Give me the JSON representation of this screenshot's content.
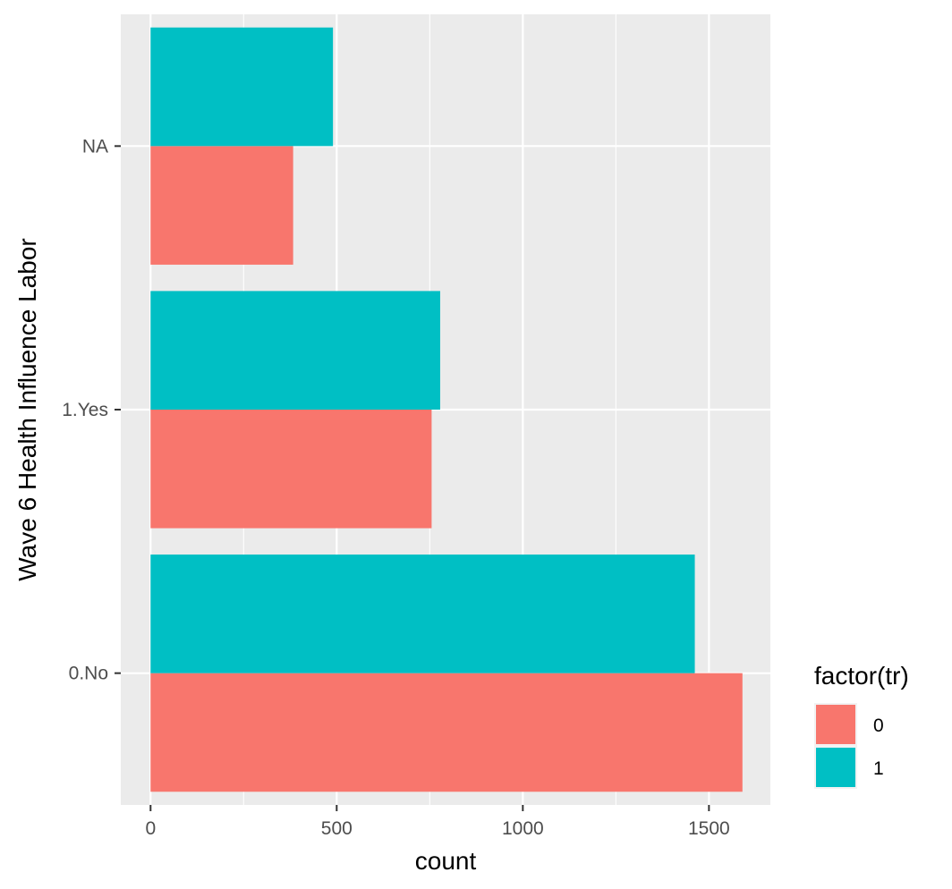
{
  "chart_data": {
    "type": "bar",
    "orientation": "horizontal",
    "position": "dodge",
    "categories": [
      "0.No",
      "1.Yes",
      "NA"
    ],
    "series": [
      {
        "name": "0",
        "values": [
          1590,
          755,
          383
        ]
      },
      {
        "name": "1",
        "values": [
          1462,
          778,
          490
        ]
      }
    ],
    "xlabel": "count",
    "ylabel": "Wave 6 Health Influence Labor",
    "xlim": [
      -80,
      1665
    ],
    "x_ticks": [
      0,
      500,
      1000,
      1500
    ],
    "x_tick_labels": [
      "0",
      "500",
      "1000",
      "1500"
    ],
    "x_minor_ticks": [
      250,
      750,
      1250
    ],
    "grid": true,
    "legend": {
      "title": "factor(tr)",
      "position": "right",
      "entries": [
        {
          "label": "0",
          "color": "#F8766D"
        },
        {
          "label": "1",
          "color": "#00BFC4"
        }
      ]
    },
    "colors": {
      "panel": "#EBEBEB",
      "grid": "#FFFFFF",
      "series_0": "#F8766D",
      "series_1": "#00BFC4"
    }
  }
}
